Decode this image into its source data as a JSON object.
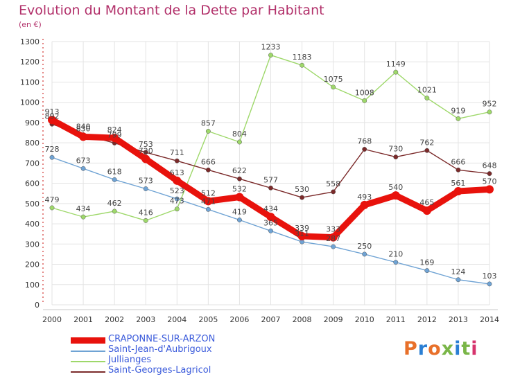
{
  "header": {
    "title": "Evolution du Montant de la Dette par Habitant",
    "subtitle": "(en €)"
  },
  "logo": {
    "text": "Proxiti",
    "colors": [
      "#e8702a",
      "#2a7fd4",
      "#e8702a",
      "#7ab648",
      "#2a7fd4",
      "#7ab648",
      "#d6336c"
    ]
  },
  "chart_data": {
    "type": "line",
    "title": "Evolution du Montant de la Dette par Habitant",
    "subtitle": "(en €)",
    "x": [
      2000,
      2001,
      2002,
      2003,
      2004,
      2005,
      2006,
      2007,
      2008,
      2009,
      2010,
      2011,
      2012,
      2013,
      2014
    ],
    "ylim": [
      0,
      1300
    ],
    "yticks": [
      0,
      100,
      200,
      300,
      400,
      500,
      600,
      700,
      800,
      900,
      1000,
      1100,
      1200,
      1300
    ],
    "grid": true,
    "legend_position": "bottom-left",
    "series": [
      {
        "name": "CRAPONNE-SUR-ARZON",
        "color": "#e8120c",
        "emphasis": true,
        "values": [
          913,
          830,
          824,
          720,
          613,
          512,
          532,
          434,
          339,
          333,
          493,
          540,
          465,
          561,
          570
        ],
        "labels": [
          "913",
          "830",
          "824",
          "720",
          "613",
          "512",
          "532",
          "434",
          "339",
          "333",
          "493",
          "540",
          "465",
          "561",
          "570"
        ]
      },
      {
        "name": "Saint-Jean-d'Aubrigoux",
        "color": "#6fa3d4",
        "values": [
          728,
          673,
          618,
          573,
          523,
          471,
          419,
          365,
          311,
          287,
          250,
          210,
          169,
          124,
          103
        ],
        "labels": [
          "728",
          "673",
          "618",
          "573",
          "523",
          "471",
          "419",
          "365",
          "311",
          "287",
          "250",
          "210",
          "169",
          "124",
          "103"
        ]
      },
      {
        "name": "Jullianges",
        "color": "#9ed86a",
        "values": [
          479,
          434,
          462,
          416,
          473,
          857,
          804,
          1233,
          1183,
          1075,
          1008,
          1149,
          1021,
          919,
          952
        ],
        "labels": [
          "479",
          "434",
          "462",
          "416",
          "473",
          "857",
          "804",
          "1233",
          "1183",
          "1075",
          "1008",
          "1149",
          "1021",
          "919",
          "952"
        ]
      },
      {
        "name": "Saint-Georges-Lagricol",
        "color": "#7b2a2a",
        "values": [
          892,
          840,
          799,
          753,
          711,
          666,
          622,
          577,
          530,
          558,
          768,
          730,
          762,
          666,
          648
        ],
        "labels": [
          "892",
          "840",
          "799",
          "753",
          "711",
          "666",
          "622",
          "577",
          "530",
          "558",
          "768",
          "730",
          "762",
          "666",
          "648"
        ]
      }
    ]
  }
}
